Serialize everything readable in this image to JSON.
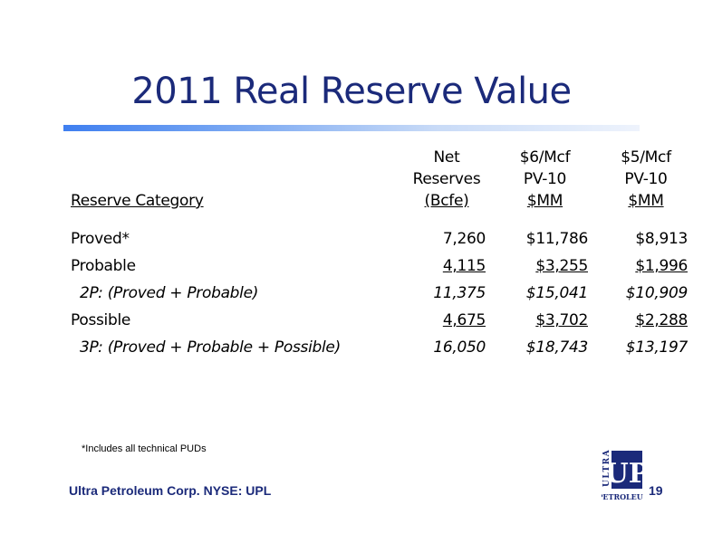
{
  "slide": {
    "title": "2011 Real Reserve Value",
    "footnote": "*Includes all technical PUDs",
    "company": "Ultra Petroleum Corp. NYSE: UPL",
    "page_number": "19",
    "logo": {
      "top_text": "ULTRA",
      "main_text": "UP",
      "bottom_text": "PETROLEUM",
      "color": "#1b2a7a"
    }
  },
  "table": {
    "headers": {
      "category": "Reserve Category",
      "net": [
        "Net",
        "Reserves",
        "(Bcfe)"
      ],
      "pv6": [
        "$6/Mcf",
        "PV-10",
        "$MM"
      ],
      "pv5": [
        "$5/Mcf",
        "PV-10",
        "$MM"
      ]
    },
    "rows": [
      {
        "category": "Proved*",
        "net": "7,260",
        "pv6": "$11,786",
        "pv5": "$8,913"
      },
      {
        "category": "Probable",
        "net": "4,115",
        "pv6": "$3,255",
        "pv5": "$1,996"
      },
      {
        "category": "2P: (Proved + Probable)",
        "net": "11,375",
        "pv6": "$15,041",
        "pv5": "$10,909"
      },
      {
        "category": "Possible",
        "net": "4,675",
        "pv6": "$3,702",
        "pv5": "$2,288"
      },
      {
        "category": "3P: (Proved + Probable + Possible)",
        "net": "16,050",
        "pv6": "$18,743",
        "pv5": "$13,197"
      }
    ]
  },
  "colors": {
    "title": "#1b2a7a",
    "rule_start": "#3f7ff0",
    "rule_end": "#eef3fc"
  }
}
